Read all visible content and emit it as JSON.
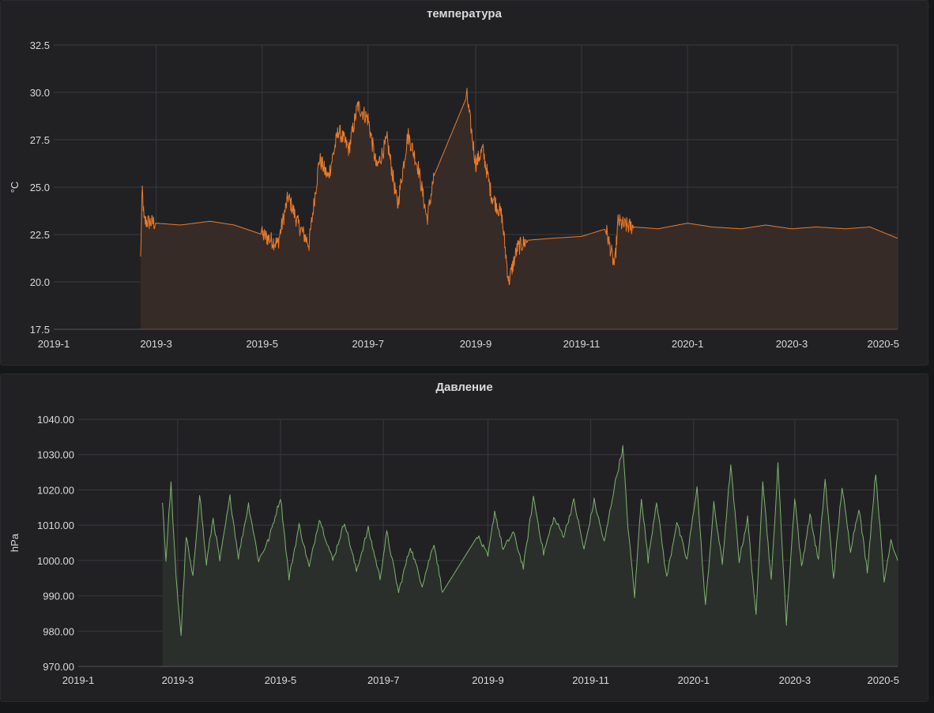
{
  "panels": [
    {
      "title": "температура",
      "color": "#eb7b2b",
      "fill": "#362b27",
      "chart_data": {
        "type": "area",
        "title": "температура",
        "ylabel": "°C",
        "xlabel": "",
        "x_range": [
          "2019-01-01",
          "2020-05-01"
        ],
        "ylim": [
          17.5,
          32.5
        ],
        "yticks": [
          "17.5",
          "20.0",
          "22.5",
          "25.0",
          "27.5",
          "30.0",
          "32.5"
        ],
        "xticks": [
          "2019-1",
          "2019-3",
          "2019-5",
          "2019-7",
          "2019-9",
          "2019-11",
          "2020-1",
          "2020-3",
          "2020-5"
        ],
        "grid": true,
        "series": [
          {
            "x": [
              "2019-02-20",
              "2019-02-21",
              "2019-02-22",
              "2019-03-01",
              "2019-03-15",
              "2019-04-01",
              "2019-04-15",
              "2019-05-01",
              "2019-05-10",
              "2019-05-16",
              "2019-05-22",
              "2019-05-28",
              "2019-06-03",
              "2019-06-08",
              "2019-06-14",
              "2019-06-20",
              "2019-06-25",
              "2019-07-01",
              "2019-07-06",
              "2019-07-12",
              "2019-07-18",
              "2019-07-24",
              "2019-07-30",
              "2019-08-04",
              "2019-08-08",
              "2019-08-27",
              "2019-09-01",
              "2019-09-05",
              "2019-09-10",
              "2019-09-16",
              "2019-09-20",
              "2019-09-25",
              "2019-10-01",
              "2019-10-15",
              "2019-11-01",
              "2019-11-15",
              "2019-11-20",
              "2019-11-22",
              "2019-11-25",
              "2019-12-01",
              "2019-12-15",
              "2020-01-01",
              "2020-01-15",
              "2020-02-01",
              "2020-02-15",
              "2020-03-01",
              "2020-03-15",
              "2020-04-01",
              "2020-04-15",
              "2020-05-01"
            ],
            "y": [
              21.2,
              24.9,
              23.2,
              23.1,
              23.0,
              23.2,
              23.0,
              22.5,
              22.0,
              24.5,
              23.0,
              22.0,
              26.5,
              25.5,
              28.0,
              27.0,
              29.3,
              28.6,
              26.0,
              27.5,
              24.0,
              27.8,
              26.0,
              23.3,
              25.6,
              29.8,
              26.2,
              27.0,
              24.6,
              23.5,
              20.0,
              21.8,
              22.2,
              22.3,
              22.4,
              22.8,
              20.8,
              23.2,
              23.0,
              22.9,
              22.8,
              23.1,
              22.9,
              22.8,
              23.0,
              22.8,
              22.9,
              22.8,
              22.9,
              22.3
            ]
          }
        ]
      }
    },
    {
      "title": "Давление",
      "color": "#7eb26d",
      "fill": "#2b2f2b",
      "chart_data": {
        "type": "area",
        "title": "Давление",
        "ylabel": "hPa",
        "xlabel": "",
        "x_range": [
          "2019-01-01",
          "2020-05-01"
        ],
        "ylim": [
          970,
          1040
        ],
        "yticks": [
          "970.00",
          "980.00",
          "990.00",
          "1000.00",
          "1010.00",
          "1020.00",
          "1030.00",
          "1040.00"
        ],
        "xticks": [
          "2019-1",
          "2019-3",
          "2019-5",
          "2019-7",
          "2019-9",
          "2019-11",
          "2020-1",
          "2020-3",
          "2020-5"
        ],
        "grid": true,
        "series": [
          {
            "x": [
              "2019-02-20",
              "2019-02-22",
              "2019-02-25",
              "2019-02-28",
              "2019-03-03",
              "2019-03-06",
              "2019-03-10",
              "2019-03-14",
              "2019-03-18",
              "2019-03-22",
              "2019-03-26",
              "2019-04-01",
              "2019-04-06",
              "2019-04-12",
              "2019-04-18",
              "2019-04-24",
              "2019-05-01",
              "2019-05-06",
              "2019-05-12",
              "2019-05-18",
              "2019-05-24",
              "2019-06-01",
              "2019-06-08",
              "2019-06-15",
              "2019-06-22",
              "2019-06-29",
              "2019-07-03",
              "2019-07-10",
              "2019-07-17",
              "2019-07-24",
              "2019-07-31",
              "2019-08-05",
              "2019-08-26",
              "2019-09-01",
              "2019-09-05",
              "2019-09-10",
              "2019-09-16",
              "2019-09-22",
              "2019-09-28",
              "2019-10-04",
              "2019-10-10",
              "2019-10-16",
              "2019-10-22",
              "2019-10-28",
              "2019-11-03",
              "2019-11-09",
              "2019-11-15",
              "2019-11-20",
              "2019-11-23",
              "2019-11-27",
              "2019-12-01",
              "2019-12-05",
              "2019-12-10",
              "2019-12-16",
              "2019-12-22",
              "2019-12-28",
              "2020-01-03",
              "2020-01-08",
              "2020-01-13",
              "2020-01-18",
              "2020-01-23",
              "2020-01-28",
              "2020-02-02",
              "2020-02-07",
              "2020-02-11",
              "2020-02-16",
              "2020-02-20",
              "2020-02-25",
              "2020-03-01",
              "2020-03-05",
              "2020-03-10",
              "2020-03-15",
              "2020-03-19",
              "2020-03-24",
              "2020-03-29",
              "2020-04-03",
              "2020-04-08",
              "2020-04-13",
              "2020-04-18",
              "2020-04-23",
              "2020-04-27",
              "2020-05-01"
            ],
            "y": [
              1017,
              1000,
              1022,
              995,
              979,
              1007,
              995,
              1019,
              999,
              1012,
              1000,
              1018,
              1001,
              1016,
              1000,
              1006,
              1018,
              995,
              1010,
              998,
              1012,
              1000,
              1011,
              997,
              1009,
              995,
              1008,
              991,
              1004,
              993,
              1005,
              991,
              1007,
              1001,
              1014,
              1003,
              1008,
              998,
              1018,
              1002,
              1012,
              1007,
              1017,
              1003,
              1017,
              1005,
              1021,
              1032,
              1010,
              990,
              1018,
              1000,
              1017,
              995,
              1011,
              1000,
              1021,
              987,
              1016,
              999,
              1027,
              1000,
              1012,
              984,
              1023,
              994,
              1027,
              982,
              1018,
              998,
              1013,
              1000,
              1023,
              995,
              1021,
              1003,
              1015,
              997,
              1025,
              994,
              1006,
              1000
            ]
          }
        ]
      }
    }
  ]
}
